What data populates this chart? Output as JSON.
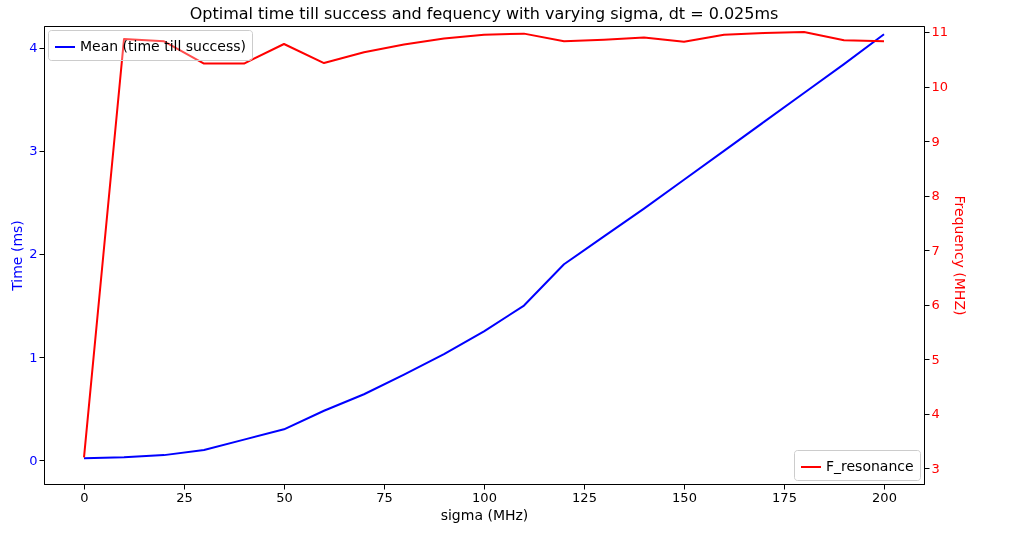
{
  "chart_data": {
    "type": "line",
    "title": "Optimal time till success and fequency with varying sigma, dt = 0.025ms",
    "xlabel": "sigma (MHz)",
    "ylabel": "Time (ms)",
    "y2label": "Frequency (MHZ)",
    "x": [
      0,
      10,
      20,
      30,
      40,
      50,
      60,
      70,
      80,
      90,
      100,
      110,
      120,
      130,
      140,
      150,
      160,
      170,
      180,
      190,
      200
    ],
    "series": [
      {
        "name": "Mean (time till success)",
        "color": "#0000ff",
        "values": [
          0.02,
          0.03,
          0.05,
          0.1,
          0.2,
          0.3,
          0.48,
          0.64,
          0.83,
          1.03,
          1.25,
          1.5,
          1.9,
          2.17,
          2.44,
          2.72,
          3.0,
          3.28,
          3.56,
          3.84,
          4.13
        ]
      },
      {
        "name": "F_resonance",
        "color": "#ff0000",
        "axis": "y2",
        "values": [
          3.2,
          10.87,
          10.83,
          10.42,
          10.42,
          10.78,
          10.43,
          10.63,
          10.77,
          10.88,
          10.95,
          10.97,
          10.83,
          10.86,
          10.9,
          10.82,
          10.95,
          10.98,
          11.0,
          10.85,
          10.83
        ]
      }
    ],
    "xlim": [
      -10,
      210
    ],
    "xticks": [
      0,
      25,
      50,
      75,
      100,
      125,
      150,
      175,
      200
    ],
    "ylim": [
      -0.23,
      4.21
    ],
    "yticks": [
      0,
      1,
      2,
      3,
      4
    ],
    "y2lim": [
      2.71,
      11.11
    ],
    "y2ticks": [
      3,
      4,
      5,
      6,
      7,
      8,
      9,
      10,
      11
    ],
    "legend": [
      "top left",
      "bottom right"
    ],
    "grid": false,
    "line_style": "solid",
    "marker": "none"
  }
}
